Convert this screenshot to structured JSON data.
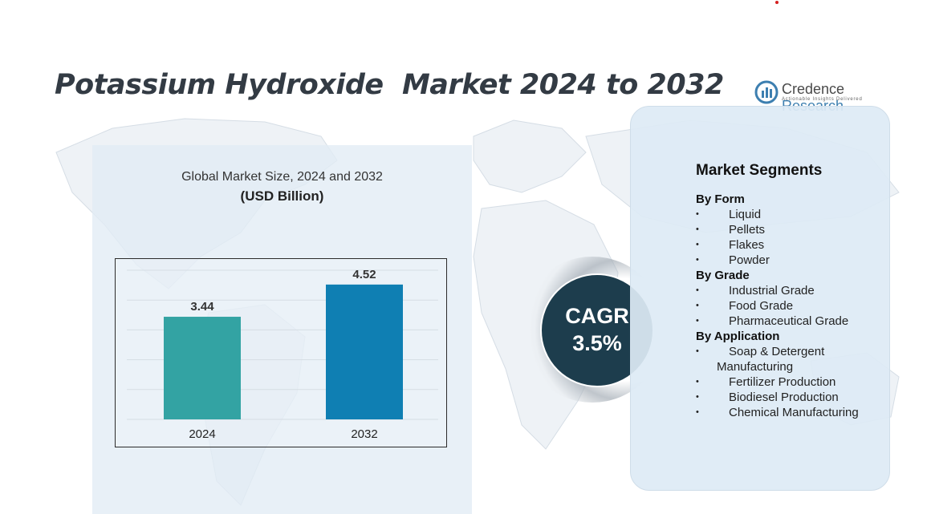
{
  "title": "Potassium Hydroxide  Market 2024 to 2032",
  "logo": {
    "name_part1": "Credence",
    "name_part2": " Research",
    "tagline": "Actionable Insights Delivered",
    "icon": "bar-chart-logo-icon"
  },
  "chart_heading": "Global Market Size, 2024 and 2032",
  "chart_subheading": "(USD Billion)",
  "chart_data": {
    "type": "bar",
    "title": "Global Market Size, 2024 and 2032",
    "ylabel": "",
    "xlabel": "",
    "categories": [
      "2024",
      "2032"
    ],
    "values": [
      3.44,
      4.52
    ],
    "value_labels": [
      "3.44",
      "4.52"
    ],
    "colors": [
      "#33a3a3",
      "#0f7fb3"
    ],
    "grid": true,
    "ylim": [
      0,
      5
    ]
  },
  "cagr": {
    "label": "CAGR",
    "value": "3.5%"
  },
  "segments": {
    "title": "Market Segments",
    "bullet": "•",
    "groups": [
      {
        "title": "By Form",
        "items": [
          "Liquid",
          "Pellets",
          "Flakes",
          "Powder"
        ]
      },
      {
        "title": "By Grade",
        "items": [
          "Industrial Grade",
          "Food Grade",
          "Pharmaceutical Grade"
        ]
      },
      {
        "title": "By Application",
        "items": [
          "Soap & Detergent Manufacturing",
          "Fertilizer Production",
          "Biodiesel Production",
          "Chemical Manufacturing"
        ]
      }
    ]
  }
}
